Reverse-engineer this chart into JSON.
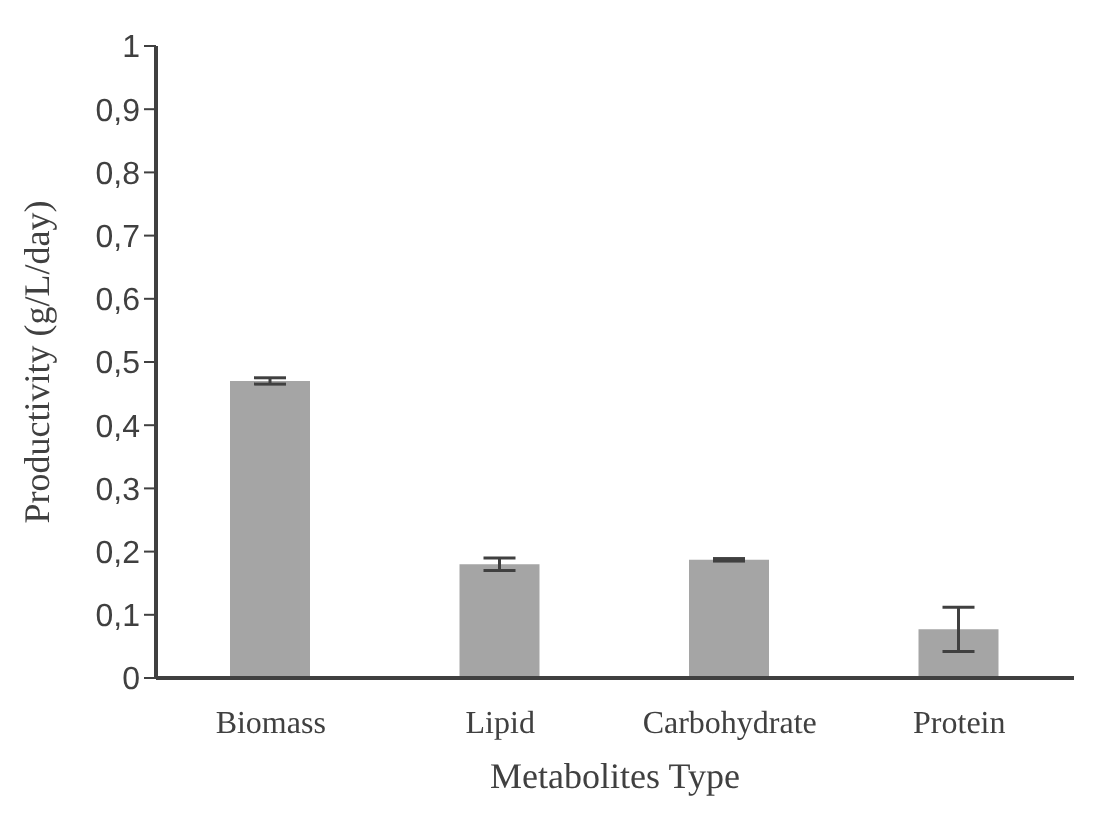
{
  "chart_data": {
    "type": "bar",
    "xlabel": "Metabolites Type",
    "ylabel": "Productivity (g/L/day)",
    "categories": [
      "Biomass",
      "Lipid",
      "Carbohydrate",
      "Protein"
    ],
    "values": [
      0.47,
      0.18,
      0.187,
      0.077
    ],
    "errors": [
      0.005,
      0.01,
      0.002,
      0.035
    ],
    "color": "#a5a5a5",
    "ylim": [
      0,
      1
    ],
    "yticks": [
      0,
      {
        "value": 0.1,
        "label": "0,1"
      },
      {
        "value": 0.2,
        "label": "0,2"
      },
      {
        "value": 0.3,
        "label": "0,3"
      },
      {
        "value": 0.4,
        "label": "0,4"
      },
      {
        "value": 0.5,
        "label": "0,5"
      },
      {
        "value": 0.6,
        "label": "0,6"
      },
      {
        "value": 0.7,
        "label": "0,7"
      },
      {
        "value": 0.8,
        "label": "0,8"
      },
      {
        "value": 0.9,
        "label": "0,9"
      },
      1
    ],
    "grid": false,
    "legend": false
  }
}
